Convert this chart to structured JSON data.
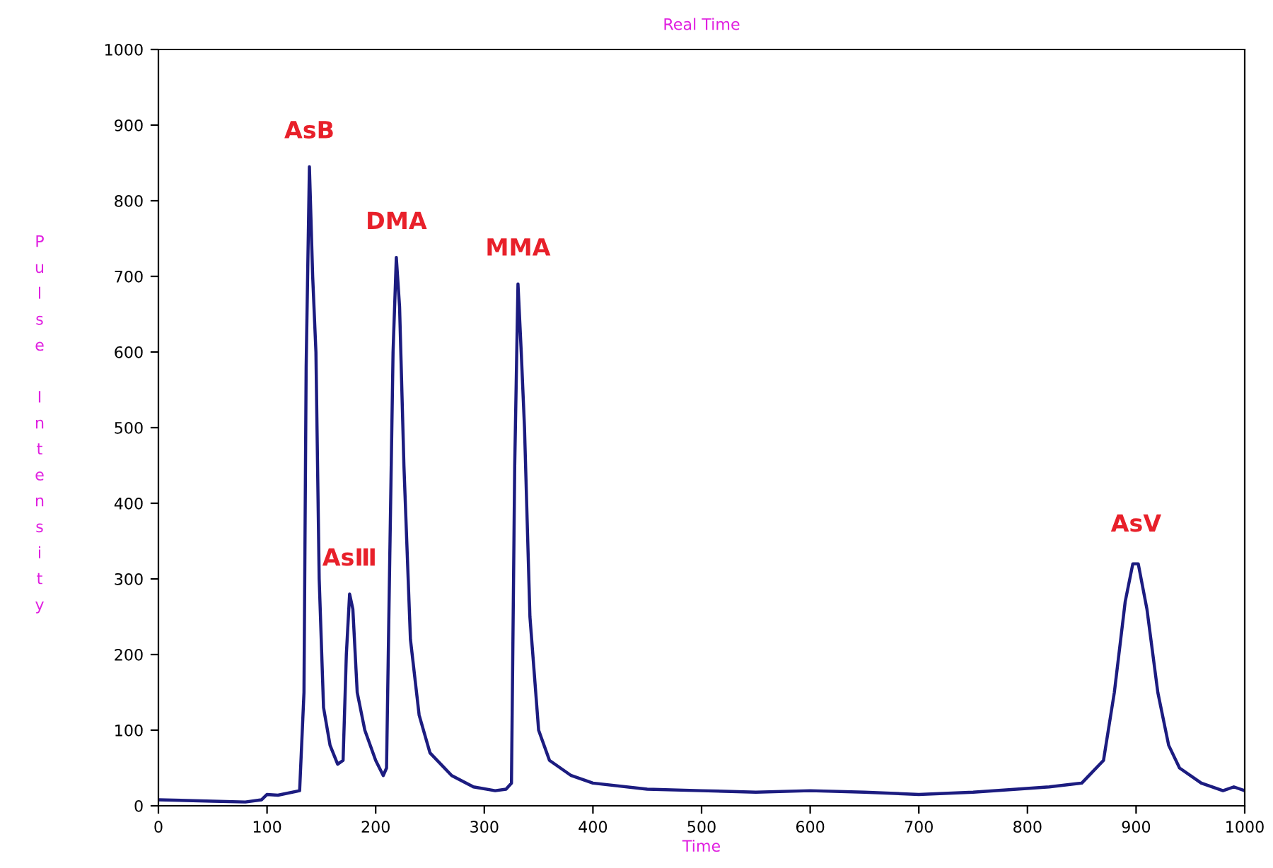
{
  "chart_data": {
    "type": "line",
    "title": "Real Time",
    "xlabel": "Time",
    "ylabel": "Pulse Intensity",
    "x": [
      0,
      50,
      80,
      95,
      100,
      110,
      130,
      134,
      136,
      139,
      142,
      145,
      148,
      152,
      158,
      165,
      170,
      173,
      176,
      179,
      183,
      190,
      200,
      207,
      210,
      213,
      216,
      219,
      222,
      226,
      232,
      240,
      250,
      270,
      290,
      310,
      320,
      325,
      328,
      331,
      334,
      337,
      342,
      350,
      360,
      380,
      400,
      450,
      500,
      550,
      600,
      650,
      700,
      750,
      790,
      820,
      850,
      870,
      880,
      890,
      897,
      902,
      910,
      920,
      930,
      940,
      960,
      980,
      990,
      1000
    ],
    "series": [
      {
        "color": "#1c1c80",
        "values": [
          8,
          6,
          5,
          8,
          15,
          14,
          20,
          150,
          580,
          845,
          700,
          600,
          300,
          130,
          80,
          55,
          60,
          200,
          280,
          260,
          150,
          100,
          60,
          40,
          50,
          330,
          600,
          725,
          660,
          450,
          220,
          120,
          70,
          40,
          25,
          20,
          22,
          30,
          450,
          690,
          600,
          500,
          250,
          100,
          60,
          40,
          30,
          22,
          20,
          18,
          20,
          18,
          15,
          18,
          22,
          25,
          30,
          60,
          150,
          270,
          320,
          320,
          260,
          150,
          80,
          50,
          30,
          20,
          25,
          20
        ]
      }
    ],
    "xlim": [
      0,
      1000
    ],
    "ylim": [
      0,
      1000
    ],
    "xticks": [
      0,
      100,
      200,
      300,
      400,
      500,
      600,
      700,
      800,
      900,
      1000
    ],
    "yticks": [
      0,
      100,
      200,
      300,
      400,
      500,
      600,
      700,
      800,
      900,
      1000
    ],
    "grid": false,
    "legend": false,
    "annotations": [
      {
        "text": "AsB",
        "x": 139,
        "y": 845
      },
      {
        "text": "AsⅢ",
        "x": 176,
        "y": 280
      },
      {
        "text": "DMA",
        "x": 219,
        "y": 725
      },
      {
        "text": "MMA",
        "x": 331,
        "y": 690
      },
      {
        "text": "AsV",
        "x": 900,
        "y": 325
      }
    ]
  }
}
